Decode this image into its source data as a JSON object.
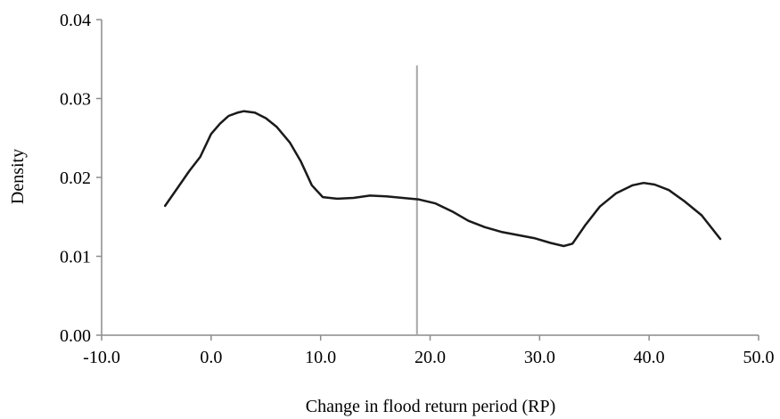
{
  "chart_data": {
    "type": "line",
    "title": "",
    "xlabel": "Change in flood return period (RP)",
    "ylabel": "Density",
    "xlim": [
      -10,
      50
    ],
    "ylim": [
      0,
      0.04
    ],
    "x_ticks": [
      -10,
      0,
      10,
      20,
      30,
      40,
      50
    ],
    "x_tick_labels": [
      "-10.0",
      "0.0",
      "10.0",
      "20.0",
      "30.0",
      "40.0",
      "50.0"
    ],
    "y_ticks": [
      0,
      0.01,
      0.02,
      0.03,
      0.04
    ],
    "y_tick_labels": [
      "0.00",
      "0.01",
      "0.02",
      "0.03",
      "0.04"
    ],
    "grid": false,
    "legend": "none",
    "series": [
      {
        "color": "#1a1a1a",
        "points": [
          [
            -4.2,
            0.0164
          ],
          [
            -3.0,
            0.0188
          ],
          [
            -2.0,
            0.0208
          ],
          [
            -1.0,
            0.0226
          ],
          [
            0.0,
            0.0255
          ],
          [
            0.8,
            0.0268
          ],
          [
            1.6,
            0.0278
          ],
          [
            2.4,
            0.0282
          ],
          [
            3.0,
            0.0284
          ],
          [
            4.0,
            0.0282
          ],
          [
            5.0,
            0.0275
          ],
          [
            6.0,
            0.0264
          ],
          [
            7.2,
            0.0244
          ],
          [
            8.2,
            0.022
          ],
          [
            9.2,
            0.019
          ],
          [
            10.2,
            0.0175
          ],
          [
            11.5,
            0.0173
          ],
          [
            13.0,
            0.0174
          ],
          [
            14.5,
            0.0177
          ],
          [
            16.0,
            0.0176
          ],
          [
            17.5,
            0.0174
          ],
          [
            19.0,
            0.0172
          ],
          [
            20.5,
            0.0167
          ],
          [
            22.0,
            0.0157
          ],
          [
            23.5,
            0.0145
          ],
          [
            25.0,
            0.0137
          ],
          [
            26.5,
            0.0131
          ],
          [
            28.0,
            0.0127
          ],
          [
            29.5,
            0.0123
          ],
          [
            31.0,
            0.0117
          ],
          [
            32.2,
            0.0113
          ],
          [
            33.0,
            0.0116
          ],
          [
            34.2,
            0.014
          ],
          [
            35.5,
            0.0163
          ],
          [
            37.0,
            0.018
          ],
          [
            38.5,
            0.019
          ],
          [
            39.5,
            0.0193
          ],
          [
            40.5,
            0.0191
          ],
          [
            41.8,
            0.0184
          ],
          [
            43.2,
            0.017
          ],
          [
            44.8,
            0.0152
          ],
          [
            46.5,
            0.0122
          ]
        ]
      }
    ],
    "reference_line": {
      "x": 18.8,
      "y_top": 0.0342,
      "color": "#a6a6a6"
    }
  }
}
